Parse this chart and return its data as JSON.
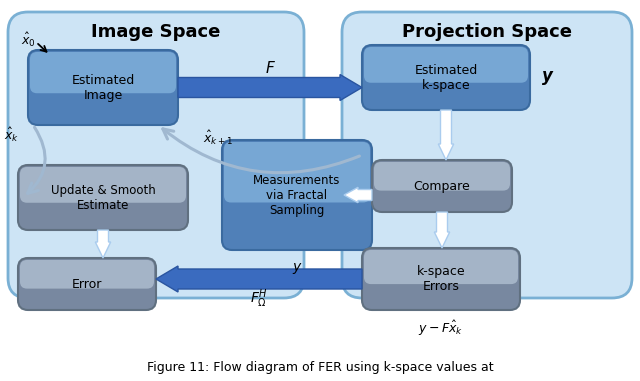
{
  "bg_color": "#ffffff",
  "panel_bg": "#cde4f5",
  "panel_edge": "#7ab0d4",
  "left_title": "Image Space",
  "right_title": "Projection Space",
  "caption": "Figure 11: Flow diagram of FER using k-space values at",
  "blue_arrow_color": "#3a6bbf",
  "blue_arrow_edge": "#2a55a0",
  "white_arrow_color": "#e8f4ff",
  "white_arrow_edge": "#aaccee",
  "gray_arrow_color": "#b8c8d8",
  "box_blue_face": "#5b8dbf",
  "box_blue_light": "#8ab8df",
  "box_blue_edge": "#3a6a9f",
  "box_gray_face": "#8898a8",
  "box_gray_light": "#b8c8d8",
  "box_gray_edge": "#607080"
}
